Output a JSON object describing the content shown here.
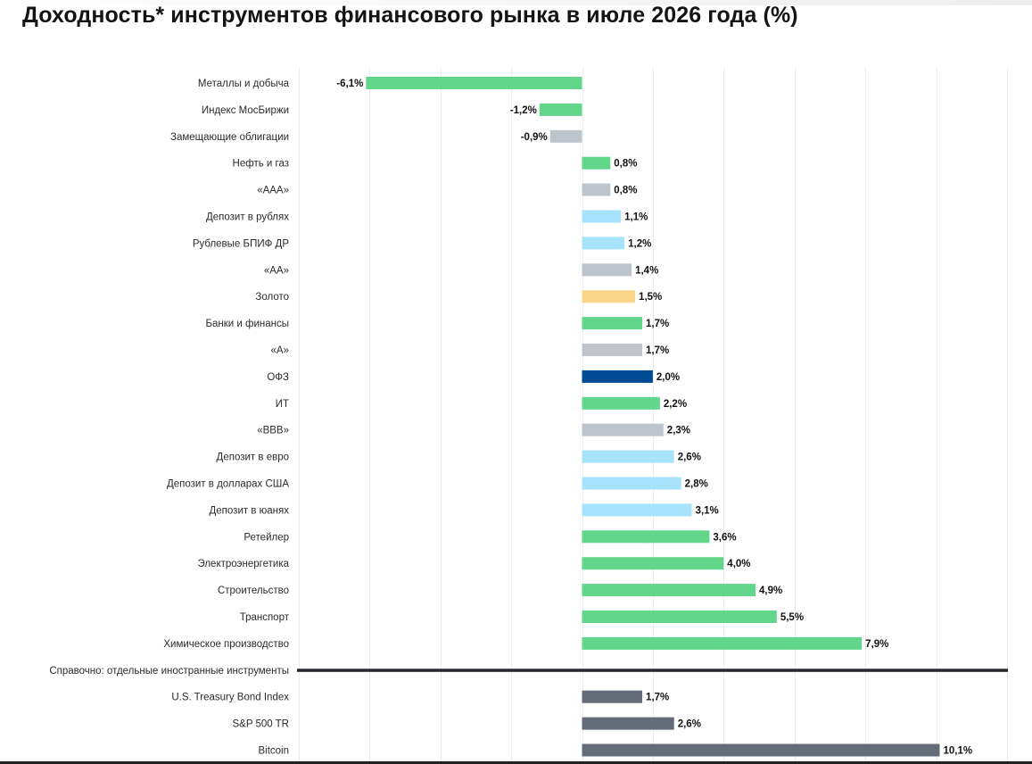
{
  "title": "Доходность* инструментов финансового рынка в июле 2026 года (%)",
  "chart_data": {
    "type": "bar",
    "orientation": "horizontal",
    "title": "Доходность* инструментов финансового рынка в июле 2026 года (%)",
    "value_suffix": "%",
    "xlim": [
      -8,
      12
    ],
    "grid": true,
    "colors": {
      "sector": "#62d68a",
      "bond": "#bec4cc",
      "deposit": "#a7e3fa",
      "gold": "#fbd68a",
      "ofz": "#004b93",
      "foreign": "#646c79"
    },
    "categories": [
      "Металлы и добыча",
      "Индекс МосБиржи",
      "Замещающие облигации",
      "Нефть и газ",
      "«AAA»",
      "Депозит в рублях",
      "Рублевые БПИФ ДР",
      "«AA»",
      "Золото",
      "Банки и финансы",
      "«A»",
      "ОФЗ",
      "ИТ",
      "«BBB»",
      "Депозит в евро",
      "Депозит в долларах США",
      "Депозит в юанях",
      "Ретейлер",
      "Электроэнергетика",
      "Строительство",
      "Транспорт",
      "Химическое производство"
    ],
    "values": [
      -6.1,
      -1.2,
      -0.9,
      0.8,
      0.8,
      1.1,
      1.2,
      1.4,
      1.5,
      1.7,
      1.7,
      2.0,
      2.2,
      2.3,
      2.6,
      2.8,
      3.1,
      3.6,
      4.0,
      4.9,
      5.5,
      7.9
    ],
    "value_labels": [
      "-6,1%",
      "-1,2%",
      "-0,9%",
      "0,8%",
      "0,8%",
      "1,1%",
      "1,2%",
      "1,4%",
      "1,5%",
      "1,7%",
      "1,7%",
      "2,0%",
      "2,2%",
      "2,3%",
      "2,6%",
      "2,8%",
      "3,1%",
      "3,6%",
      "4,0%",
      "4,9%",
      "5,5%",
      "7,9%"
    ],
    "groups": [
      "sector",
      "sector",
      "bond",
      "sector",
      "bond",
      "deposit",
      "deposit",
      "bond",
      "gold",
      "sector",
      "bond",
      "ofz",
      "sector",
      "bond",
      "deposit",
      "deposit",
      "deposit",
      "sector",
      "sector",
      "sector",
      "sector",
      "sector"
    ],
    "separator_label": "Справочно: отдельные иностранные инструменты",
    "reference": {
      "categories": [
        "U.S. Treasury Bond Index",
        "S&P 500 TR",
        "Bitcoin"
      ],
      "values": [
        1.7,
        2.6,
        10.1
      ],
      "value_labels": [
        "1,7%",
        "2,6%",
        "10,1%"
      ],
      "group": "foreign"
    }
  }
}
